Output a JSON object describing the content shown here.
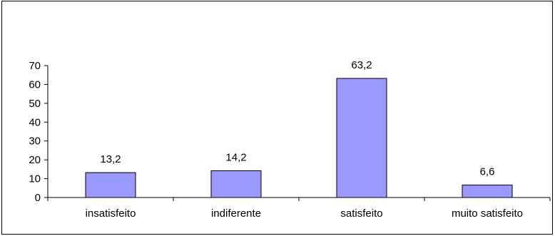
{
  "chart_data": {
    "type": "bar",
    "categories": [
      "insatisfeito",
      "indiferente",
      "satisfeito",
      "muito satisfeito"
    ],
    "values": [
      13.2,
      14.2,
      63.2,
      6.6
    ],
    "value_labels": [
      "13,2",
      "14,2",
      "63,2",
      "6,6"
    ],
    "yticks": [
      0,
      10,
      20,
      30,
      40,
      50,
      60,
      70
    ],
    "ylim": [
      0,
      70
    ],
    "title": "",
    "xlabel": "",
    "ylabel": "",
    "grid": false,
    "legend": "none",
    "colors": {
      "bar_fill": "#9999FF",
      "bar_stroke": "#000000",
      "axis": "#000000",
      "frame": "#000000"
    }
  }
}
